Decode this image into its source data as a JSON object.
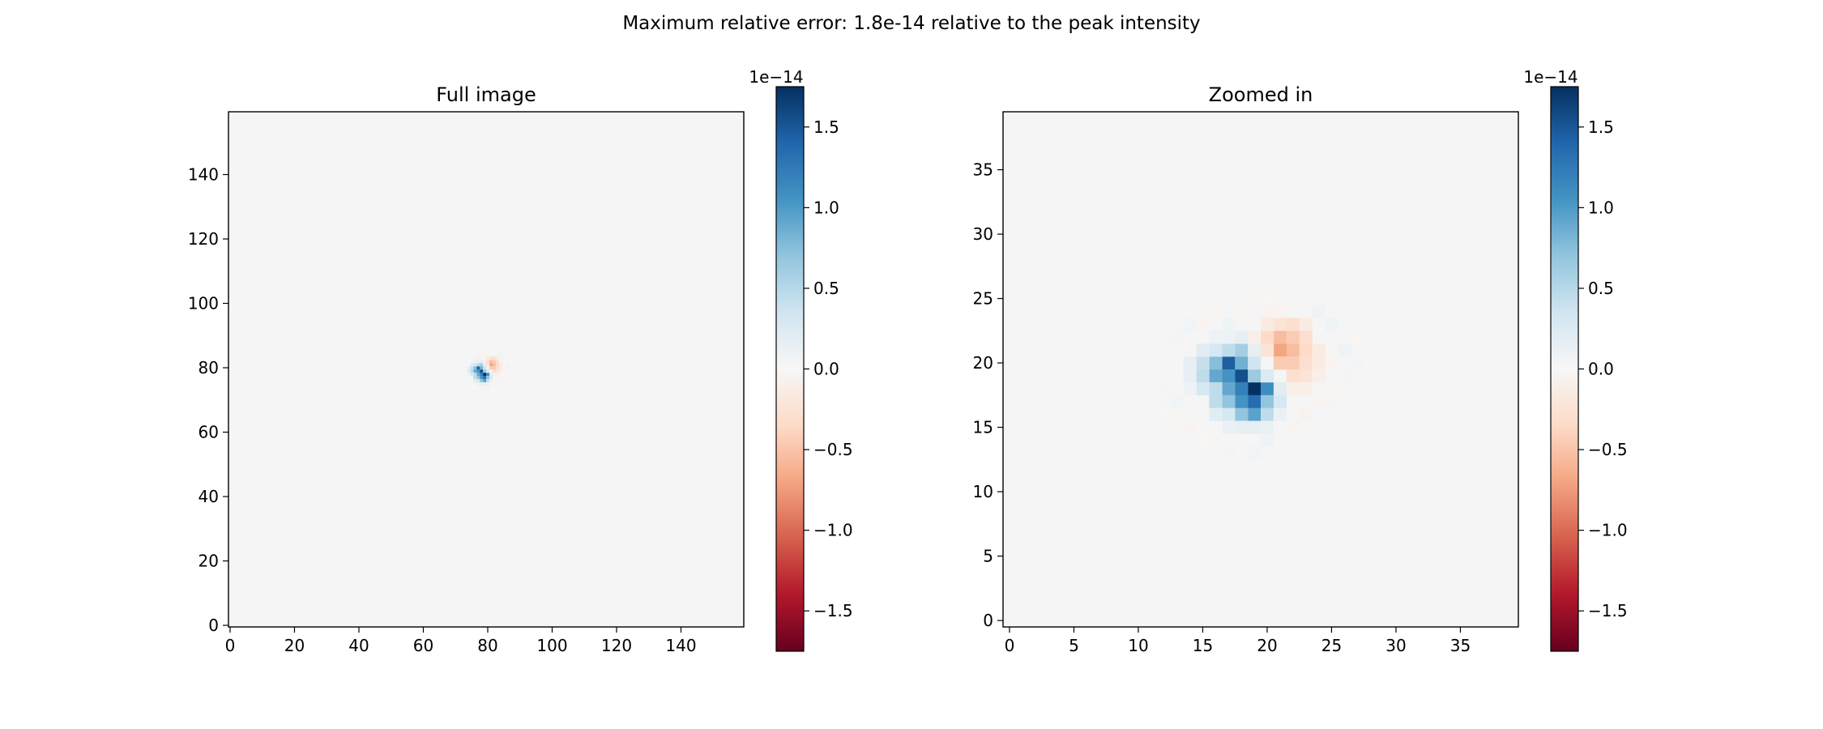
{
  "figure": {
    "suptitle": "Maximum relative error: 1.8e-14 relative to the peak intensity"
  },
  "colors": {
    "background": "#f5f5f5",
    "cmap_stops": [
      "#67001f",
      "#b2182b",
      "#d6604d",
      "#f4a582",
      "#fddbc7",
      "#f7f7f7",
      "#d1e5f0",
      "#92c5de",
      "#4393c3",
      "#2166ac",
      "#053061"
    ]
  },
  "chart_data": [
    {
      "type": "heatmap",
      "title": "Full image",
      "xlim": [
        -0.5,
        159.5
      ],
      "ylim": [
        -0.5,
        159.5
      ],
      "xticks": [
        0,
        20,
        40,
        60,
        80,
        100,
        120,
        140
      ],
      "yticks": [
        0,
        20,
        40,
        60,
        80,
        100,
        120,
        140
      ],
      "zoom_offset": [
        60,
        60
      ],
      "colorbar": {
        "scale_label": "1e−14",
        "vmin": -1.75,
        "vmax": 1.75,
        "ticks": [
          1.5,
          1.0,
          0.5,
          0.0,
          -0.5,
          -1.0,
          -1.5
        ],
        "tick_labels": [
          "1.5",
          "1.0",
          "0.5",
          "0.0",
          "−0.5",
          "−1.0",
          "−1.5"
        ]
      }
    },
    {
      "type": "heatmap",
      "title": "Zoomed in",
      "xlim": [
        -0.5,
        39.5
      ],
      "ylim": [
        -0.5,
        39.5
      ],
      "xticks": [
        0,
        5,
        10,
        15,
        20,
        25,
        30,
        35
      ],
      "yticks": [
        0,
        5,
        10,
        15,
        20,
        25,
        30,
        35
      ],
      "colorbar": {
        "scale_label": "1e−14",
        "vmin": -1.75,
        "vmax": 1.75,
        "ticks": [
          1.5,
          1.0,
          0.5,
          0.0,
          -0.5,
          -1.0,
          -1.5
        ],
        "tick_labels": [
          "1.5",
          "1.0",
          "0.5",
          "0.0",
          "−0.5",
          "−1.0",
          "−1.5"
        ]
      }
    }
  ],
  "pixel_values_zoom_frame": {
    "units": "1e-14 (values relative to peak intensity)",
    "cells": [
      [
        19,
        18,
        1.75
      ],
      [
        18,
        19,
        1.55
      ],
      [
        17,
        20,
        1.45
      ],
      [
        19,
        17,
        1.35
      ],
      [
        18,
        18,
        1.2
      ],
      [
        20,
        18,
        1.1
      ],
      [
        17,
        19,
        1.05
      ],
      [
        18,
        17,
        1.05
      ],
      [
        19,
        16,
        0.95
      ],
      [
        16,
        19,
        0.9
      ],
      [
        17,
        18,
        0.9
      ],
      [
        18,
        20,
        0.85
      ],
      [
        16,
        20,
        0.75
      ],
      [
        17,
        17,
        0.7
      ],
      [
        20,
        17,
        0.7
      ],
      [
        18,
        16,
        0.7
      ],
      [
        19,
        19,
        0.65
      ],
      [
        18,
        21,
        0.6
      ],
      [
        17,
        21,
        0.45
      ],
      [
        16,
        18,
        0.45
      ],
      [
        15,
        19,
        0.45
      ],
      [
        15,
        20,
        0.4
      ],
      [
        16,
        17,
        0.45
      ],
      [
        20,
        16,
        0.45
      ],
      [
        19,
        20,
        0.35
      ],
      [
        16,
        21,
        0.3
      ],
      [
        15,
        18,
        0.3
      ],
      [
        17,
        16,
        0.3
      ],
      [
        21,
        17,
        0.3
      ],
      [
        19,
        15,
        0.15
      ],
      [
        18,
        15,
        0.15
      ],
      [
        20,
        15,
        0.12
      ],
      [
        17,
        15,
        0.12
      ],
      [
        16,
        16,
        0.2
      ],
      [
        21,
        16,
        0.12
      ],
      [
        15,
        21,
        0.2
      ],
      [
        14,
        20,
        0.15
      ],
      [
        14,
        19,
        0.15
      ],
      [
        14,
        18,
        0.1
      ],
      [
        20,
        19,
        0.25
      ],
      [
        21,
        18,
        0.2
      ],
      [
        17,
        22,
        0.1
      ],
      [
        18,
        22,
        0.15
      ],
      [
        19,
        21,
        0.15
      ],
      [
        21,
        21,
        -0.7
      ],
      [
        22,
        21,
        -0.55
      ],
      [
        21,
        22,
        -0.55
      ],
      [
        22,
        22,
        -0.45
      ],
      [
        21,
        20,
        -0.45
      ],
      [
        22,
        20,
        -0.45
      ],
      [
        23,
        21,
        -0.35
      ],
      [
        23,
        20,
        -0.3
      ],
      [
        20,
        22,
        -0.35
      ],
      [
        22,
        23,
        -0.3
      ],
      [
        21,
        23,
        -0.25
      ],
      [
        20,
        23,
        -0.15
      ],
      [
        23,
        22,
        -0.3
      ],
      [
        22,
        19,
        -0.3
      ],
      [
        23,
        19,
        -0.25
      ],
      [
        24,
        20,
        -0.15
      ],
      [
        24,
        21,
        -0.15
      ],
      [
        20,
        21,
        -0.25
      ],
      [
        24,
        19,
        -0.1
      ],
      [
        19,
        22,
        -0.1
      ],
      [
        23,
        23,
        -0.15
      ],
      [
        20,
        24,
        -0.05
      ],
      [
        21,
        24,
        -0.05
      ],
      [
        25,
        20,
        -0.05
      ],
      [
        22,
        18,
        -0.1
      ],
      [
        23,
        18,
        -0.1
      ],
      [
        17,
        23,
        0.08
      ],
      [
        16,
        22,
        0.1
      ],
      [
        24,
        24,
        0.08
      ],
      [
        25,
        23,
        0.08
      ],
      [
        26,
        21,
        0.08
      ],
      [
        27,
        20,
        0.05
      ],
      [
        26,
        19,
        0.05
      ],
      [
        20,
        14,
        0.08
      ],
      [
        19,
        13,
        0.06
      ],
      [
        18,
        12,
        0.04
      ],
      [
        17,
        13,
        0.05
      ],
      [
        13,
        17,
        0.06
      ],
      [
        12,
        18,
        0.05
      ],
      [
        12,
        21,
        0.04
      ],
      [
        13,
        22,
        0.05
      ],
      [
        14,
        23,
        0.06
      ],
      [
        24,
        16,
        0.04
      ],
      [
        25,
        17,
        0.05
      ],
      [
        22,
        14,
        0.04
      ],
      [
        26,
        23,
        0.04
      ],
      [
        14,
        15,
        -0.05
      ],
      [
        13,
        15,
        -0.04
      ],
      [
        12,
        16,
        -0.03
      ],
      [
        22,
        15,
        -0.05
      ],
      [
        23,
        16,
        -0.06
      ],
      [
        24,
        17,
        -0.05
      ],
      [
        25,
        18,
        -0.04
      ],
      [
        26,
        17,
        -0.04
      ],
      [
        15,
        23,
        -0.05
      ],
      [
        16,
        24,
        -0.04
      ],
      [
        18,
        24,
        -0.04
      ],
      [
        11,
        19,
        -0.03
      ],
      [
        19,
        25,
        -0.04
      ],
      [
        20,
        25,
        -0.03
      ],
      [
        27,
        22,
        -0.03
      ],
      [
        15,
        14,
        -0.03
      ]
    ]
  }
}
